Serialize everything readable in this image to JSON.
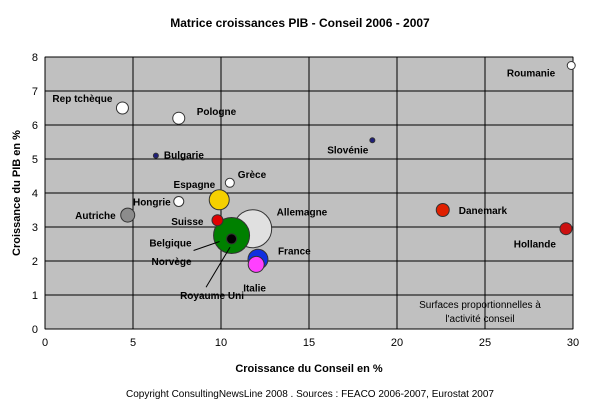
{
  "chart_data": {
    "type": "scatter",
    "title": "Matrice croissances PIB - Conseil   2006 - 2007",
    "xlabel": "Croissance du Conseil en %",
    "ylabel": "Croissance du PIB en %",
    "xlim": [
      0,
      30
    ],
    "ylim": [
      0,
      8
    ],
    "xticks": [
      "0",
      "5",
      "10",
      "15",
      "20",
      "25",
      "30"
    ],
    "yticks": [
      "0",
      "1",
      "2",
      "3",
      "4",
      "5",
      "6",
      "7",
      "8"
    ],
    "grid": true,
    "points": [
      {
        "label": "Rep tchèque",
        "x": 4.4,
        "y": 6.5,
        "size": 6,
        "color": "#ffffff"
      },
      {
        "label": "Pologne",
        "x": 7.6,
        "y": 6.2,
        "size": 6,
        "color": "#ffffff"
      },
      {
        "label": "Roumanie",
        "x": 29.9,
        "y": 7.75,
        "size": 4,
        "color": "#ffffff"
      },
      {
        "label": "Bulgarie",
        "x": 6.3,
        "y": 5.1,
        "size": 2.5,
        "color": "#1f1f7a"
      },
      {
        "label": "Slovénie",
        "x": 18.6,
        "y": 5.55,
        "size": 2.5,
        "color": "#1f1f7a"
      },
      {
        "label": "Grèce",
        "x": 10.5,
        "y": 4.3,
        "size": 4.5,
        "color": "#ffffff"
      },
      {
        "label": "Espagne",
        "x": 9.9,
        "y": 3.8,
        "size": 10,
        "color": "#f5d000"
      },
      {
        "label": "Hongrie",
        "x": 7.6,
        "y": 3.75,
        "size": 5,
        "color": "#ffffff"
      },
      {
        "label": "Autriche",
        "x": 4.7,
        "y": 3.35,
        "size": 7,
        "color": "#8c8c8c"
      },
      {
        "label": "Suisse",
        "x": 9.8,
        "y": 3.2,
        "size": 5.5,
        "color": "#e00000"
      },
      {
        "label": "Allemagne",
        "x": 11.8,
        "y": 2.95,
        "size": 19,
        "color": "#e0e0e0"
      },
      {
        "label": "Belgique",
        "x": 10.6,
        "y": 2.75,
        "size": 18,
        "color": "#008000"
      },
      {
        "label": "Norvège",
        "x": 10.6,
        "y": 2.65,
        "size": 5,
        "color": "#000000"
      },
      {
        "label": "France",
        "x": 12.1,
        "y": 2.05,
        "size": 10,
        "color": "#1030e0"
      },
      {
        "label": "Italie",
        "x": 12.0,
        "y": 1.9,
        "size": 8,
        "color": "#ff40ff"
      },
      {
        "label": "Royaume Uni",
        "x": 10.4,
        "y": 2.7,
        "size": 0,
        "color": "#000000"
      },
      {
        "label": "Danemark",
        "x": 22.6,
        "y": 3.5,
        "size": 6.5,
        "color": "#e02000"
      },
      {
        "label": "Hollande",
        "x": 29.6,
        "y": 2.95,
        "size": 6,
        "color": "#cc1010"
      }
    ],
    "note": [
      "Surfaces proportionnelles à",
      "l'activité conseil"
    ],
    "copyright": "Copyright ConsultingNewsLine 2008 . Sources : FEACO 2006-2007, Eurostat 2007"
  }
}
